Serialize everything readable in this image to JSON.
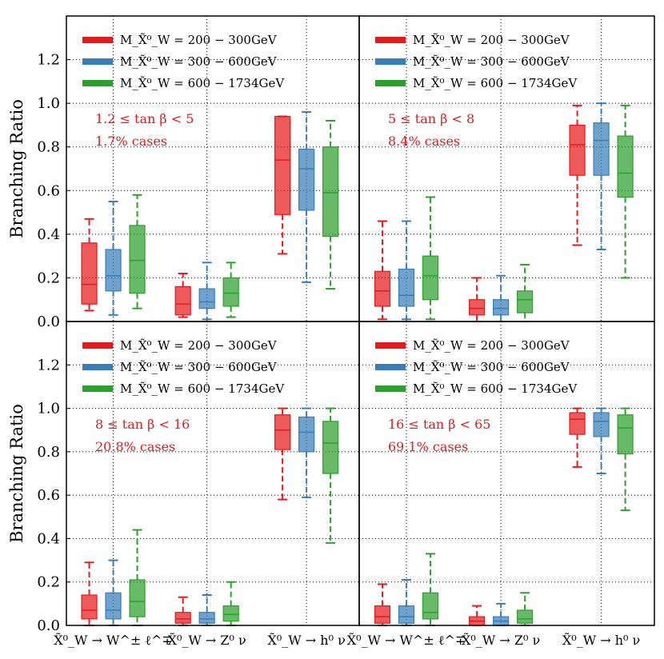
{
  "chart_data": {
    "type": "boxplot",
    "ylabel": "Branching Ratio",
    "ylim": [
      0,
      1.4
    ],
    "yticks": [
      "0.0",
      "0.2",
      "0.4",
      "0.6",
      "0.8",
      "1.0",
      "1.2"
    ],
    "categories": [
      "X̃⁰_W → W^± ℓ^∓",
      "X̃⁰_W → Z⁰ ν",
      "X̃⁰_W → h⁰ ν"
    ],
    "series": [
      {
        "name": "M_X̃⁰_W = 200 − 300GeV",
        "color": "#e41a1c"
      },
      {
        "name": "M_X̃⁰_W = 300 − 600GeV",
        "color": "#377eb8"
      },
      {
        "name": "M_X̃⁰_W = 600 − 1734GeV",
        "color": "#2ca02c"
      }
    ],
    "panels": [
      {
        "annotation": [
          "1.2 ≤ tan β < 5",
          "1.7% cases"
        ],
        "boxes": [
          [
            [
              0.05,
              0.08,
              0.17,
              0.36,
              0.47
            ],
            [
              0.03,
              0.14,
              0.21,
              0.33,
              0.55
            ],
            [
              0.06,
              0.13,
              0.28,
              0.44,
              0.58
            ]
          ],
          [
            [
              0.02,
              0.03,
              0.08,
              0.16,
              0.22
            ],
            [
              0.01,
              0.06,
              0.09,
              0.15,
              0.27
            ],
            [
              0.02,
              0.07,
              0.13,
              0.2,
              0.27
            ]
          ],
          [
            [
              0.31,
              0.49,
              0.74,
              0.94,
              0.94
            ],
            [
              0.18,
              0.51,
              0.7,
              0.79,
              0.96
            ],
            [
              0.15,
              0.39,
              0.59,
              0.8,
              0.92
            ]
          ]
        ]
      },
      {
        "annotation": [
          "5 ≤ tan β < 8",
          "8.4% cases"
        ],
        "boxes": [
          [
            [
              0.01,
              0.07,
              0.14,
              0.23,
              0.46
            ],
            [
              0.01,
              0.07,
              0.12,
              0.24,
              0.46
            ],
            [
              0.01,
              0.1,
              0.21,
              0.3,
              0.57
            ]
          ],
          [
            [
              0.0,
              0.03,
              0.06,
              0.1,
              0.2
            ],
            [
              0.0,
              0.03,
              0.06,
              0.1,
              0.21
            ],
            [
              0.0,
              0.04,
              0.1,
              0.14,
              0.26
            ]
          ],
          [
            [
              0.35,
              0.67,
              0.81,
              0.9,
              0.99
            ],
            [
              0.33,
              0.67,
              0.83,
              0.91,
              1.0
            ],
            [
              0.2,
              0.57,
              0.68,
              0.85,
              0.99
            ]
          ]
        ]
      },
      {
        "annotation": [
          "8 ≤ tan β < 16",
          "20.8% cases"
        ],
        "boxes": [
          [
            [
              0.0,
              0.03,
              0.07,
              0.14,
              0.29
            ],
            [
              0.0,
              0.03,
              0.07,
              0.15,
              0.3
            ],
            [
              0.0,
              0.04,
              0.11,
              0.21,
              0.44
            ]
          ],
          [
            [
              0.0,
              0.01,
              0.03,
              0.06,
              0.13
            ],
            [
              0.0,
              0.01,
              0.03,
              0.06,
              0.14
            ],
            [
              0.0,
              0.02,
              0.05,
              0.09,
              0.2
            ]
          ],
          [
            [
              0.58,
              0.81,
              0.9,
              0.97,
              1.0
            ],
            [
              0.59,
              0.8,
              0.89,
              0.96,
              1.0
            ],
            [
              0.38,
              0.7,
              0.84,
              0.94,
              1.0
            ]
          ]
        ]
      },
      {
        "annotation": [
          "16 ≤ tan β < 65",
          "69.1% cases"
        ],
        "boxes": [
          [
            [
              0.0,
              0.01,
              0.04,
              0.09,
              0.19
            ],
            [
              0.0,
              0.01,
              0.04,
              0.09,
              0.21
            ],
            [
              0.0,
              0.03,
              0.06,
              0.15,
              0.33
            ]
          ],
          [
            [
              0.0,
              0.0,
              0.02,
              0.04,
              0.09
            ],
            [
              0.0,
              0.0,
              0.02,
              0.04,
              0.1
            ],
            [
              0.0,
              0.01,
              0.03,
              0.07,
              0.15
            ]
          ],
          [
            [
              0.73,
              0.88,
              0.95,
              0.98,
              1.0
            ],
            [
              0.7,
              0.87,
              0.94,
              0.98,
              1.0
            ],
            [
              0.53,
              0.79,
              0.91,
              0.97,
              1.0
            ]
          ]
        ]
      }
    ]
  }
}
